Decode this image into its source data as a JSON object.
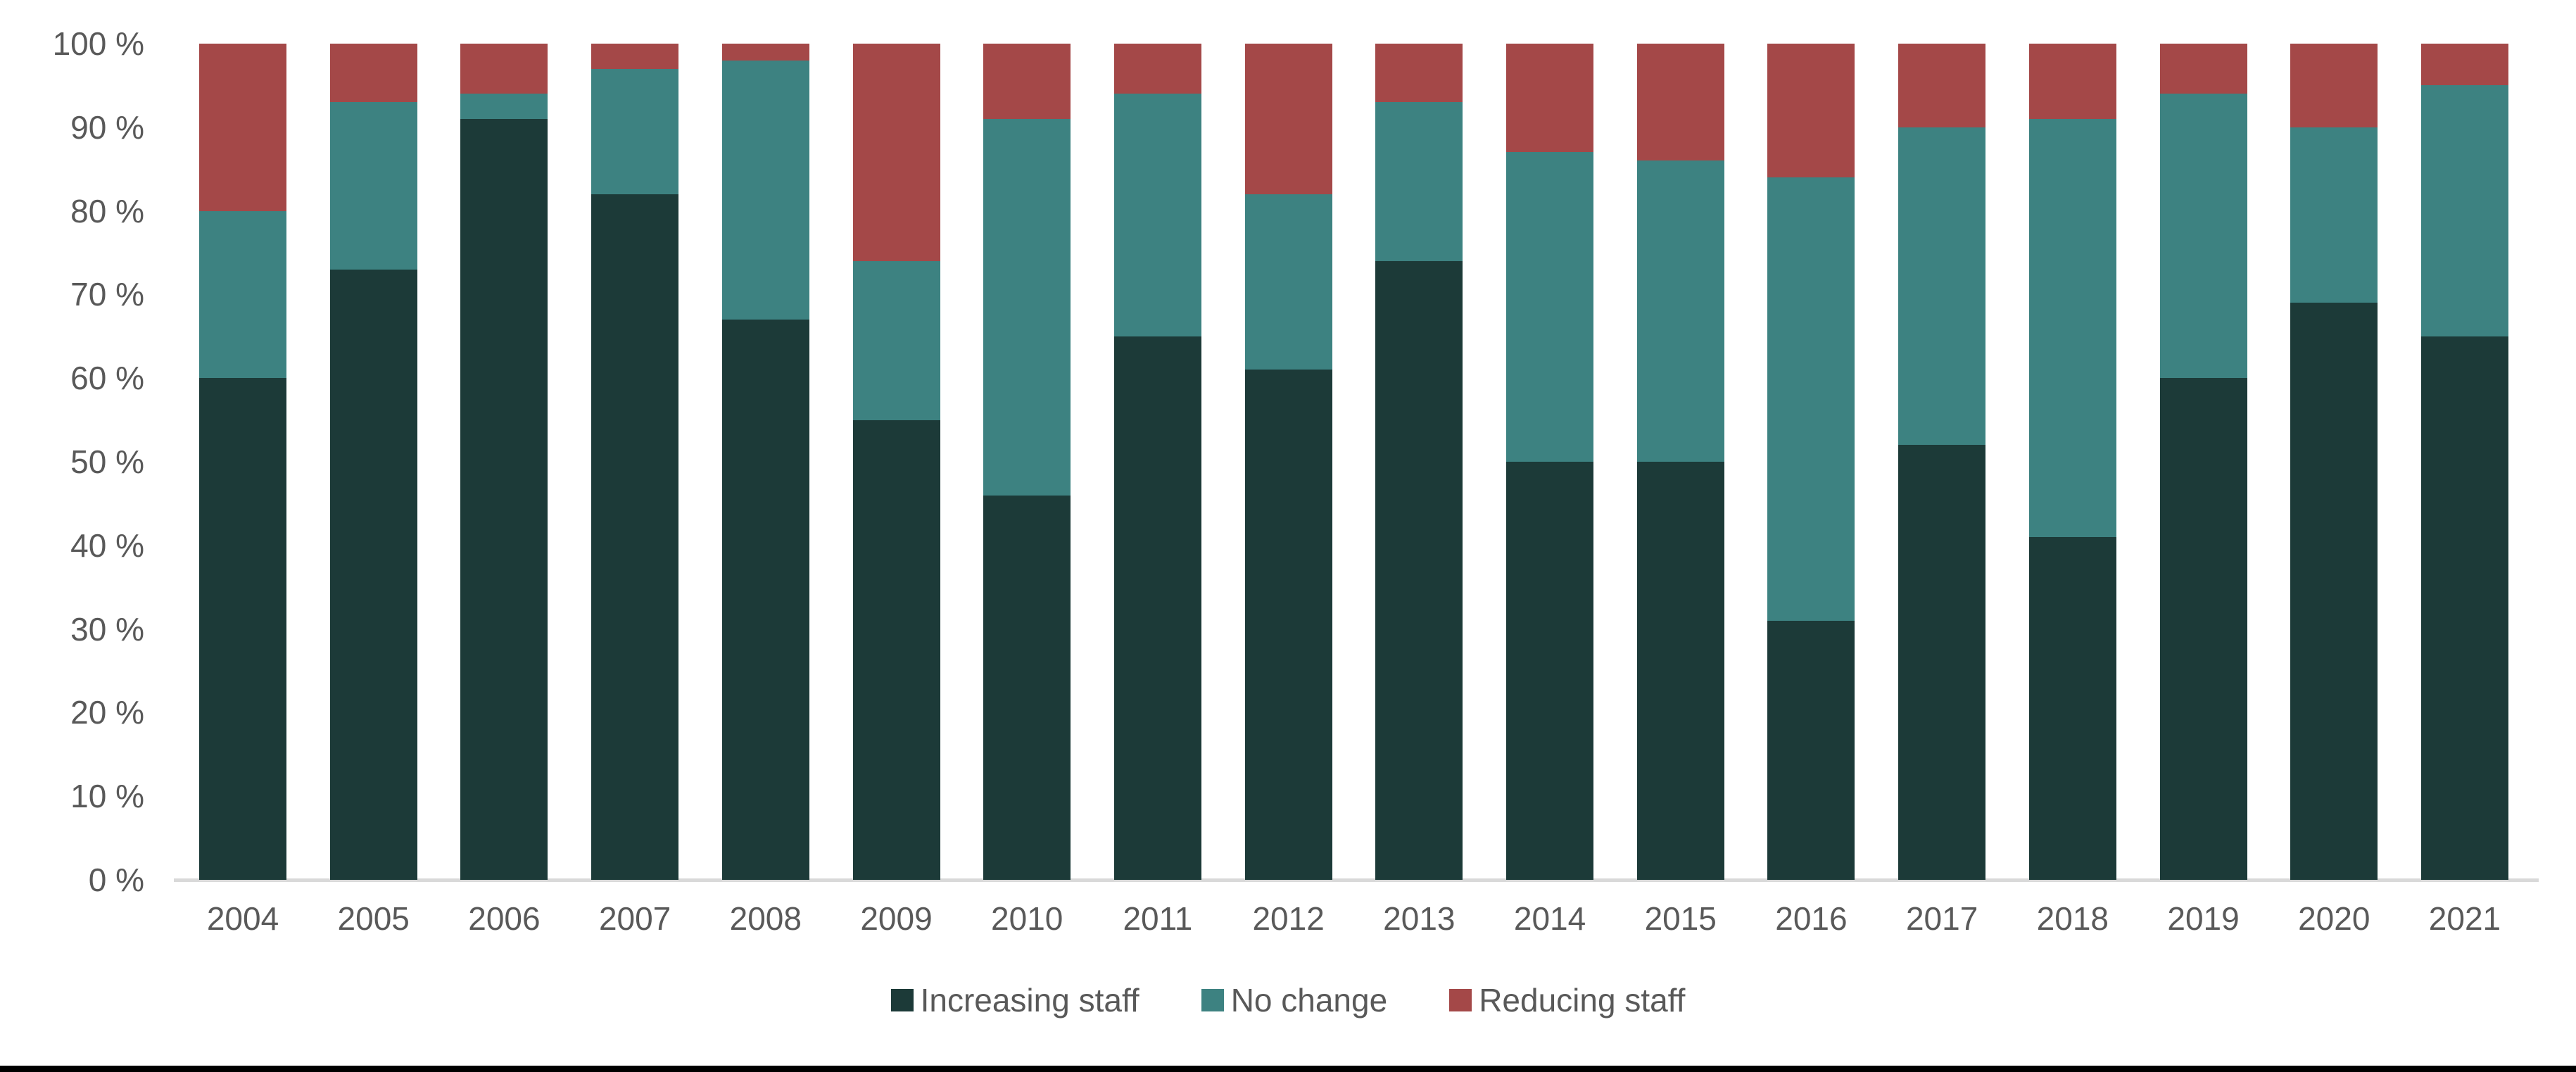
{
  "chart_data": {
    "type": "bar",
    "stacked": true,
    "stacked_total": 100,
    "title": "",
    "xlabel": "",
    "ylabel": "",
    "categories": [
      "2004",
      "2005",
      "2006",
      "2007",
      "2008",
      "2009",
      "2010",
      "2011",
      "2012",
      "2013",
      "2014",
      "2015",
      "2016",
      "2017",
      "2018",
      "2019",
      "2020",
      "2021"
    ],
    "series": [
      {
        "name": "Increasing staff",
        "color": "#1C3A38",
        "values": [
          60,
          73,
          91,
          82,
          67,
          55,
          46,
          65,
          61,
          74,
          50,
          50,
          31,
          52,
          41,
          60,
          69,
          65
        ]
      },
      {
        "name": "No change",
        "color": "#3D8281",
        "values": [
          20,
          20,
          3,
          15,
          31,
          19,
          45,
          29,
          21,
          19,
          37,
          36,
          53,
          38,
          50,
          34,
          21,
          30
        ]
      },
      {
        "name": "Reducing staff",
        "color": "#A44848",
        "values": [
          20,
          7,
          6,
          3,
          2,
          26,
          9,
          6,
          18,
          7,
          13,
          14,
          16,
          10,
          9,
          6,
          10,
          5
        ]
      }
    ],
    "yticks": [
      0,
      10,
      20,
      30,
      40,
      50,
      60,
      70,
      80,
      90,
      100
    ],
    "ytick_suffix": " %",
    "ylim": [
      0,
      100
    ],
    "grid": false,
    "legend_position": "bottom"
  },
  "style": {
    "axis_text_color": "#595959",
    "baseline_color": "#D9D9D9",
    "bottom_rule_color": "#000000",
    "background": "#FFFFFF"
  }
}
